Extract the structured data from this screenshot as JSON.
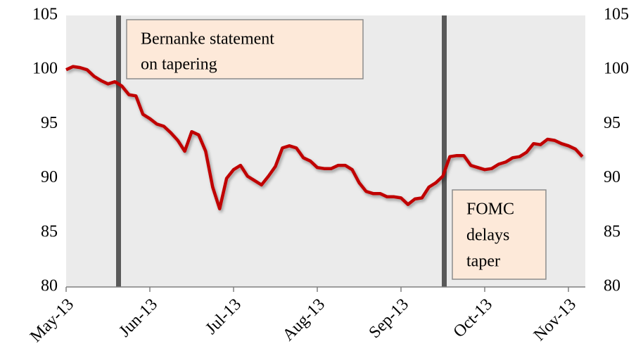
{
  "chart_data": {
    "type": "line",
    "categories": [
      "May-13",
      null,
      null,
      null,
      null,
      null,
      null,
      null,
      null,
      null,
      null,
      null,
      "Jun-13",
      null,
      null,
      null,
      null,
      null,
      null,
      null,
      null,
      null,
      null,
      null,
      "Jul-13",
      null,
      null,
      null,
      null,
      null,
      null,
      null,
      null,
      null,
      null,
      null,
      "Aug-13",
      null,
      null,
      null,
      null,
      null,
      null,
      null,
      null,
      null,
      null,
      null,
      "Sep-13",
      null,
      null,
      null,
      null,
      null,
      null,
      null,
      null,
      null,
      null,
      null,
      "Oct-13",
      null,
      null,
      null,
      null,
      null,
      null,
      null,
      null,
      null,
      null,
      null,
      "Nov-13",
      null,
      null
    ],
    "series": [
      {
        "color": "#c00000",
        "values": [
          100.0,
          100.3,
          100.2,
          100.0,
          99.4,
          99.0,
          98.7,
          98.9,
          98.5,
          97.7,
          97.6,
          95.9,
          95.5,
          95.0,
          94.8,
          94.2,
          93.5,
          92.5,
          94.3,
          94.0,
          92.5,
          89.2,
          87.2,
          90.0,
          90.8,
          91.2,
          90.2,
          89.8,
          89.4,
          90.2,
          91.1,
          92.8,
          93.0,
          92.8,
          91.9,
          91.6,
          91.0,
          90.9,
          90.9,
          91.2,
          91.2,
          90.8,
          89.6,
          88.8,
          88.6,
          88.6,
          88.3,
          88.3,
          88.2,
          87.6,
          88.1,
          88.2,
          89.2,
          89.6,
          90.2,
          92.0,
          92.1,
          92.1,
          91.2,
          91.0,
          90.8,
          90.9,
          91.3,
          91.5,
          91.9,
          92.0,
          92.4,
          93.2,
          93.1,
          93.6,
          93.5,
          93.2,
          93.0,
          92.7,
          92.0
        ]
      }
    ],
    "ylim": [
      80,
      105
    ],
    "yticks": [
      80,
      85,
      90,
      95,
      100,
      105
    ],
    "y2lim": [
      80,
      105
    ],
    "y2ticks": [
      80,
      85,
      90,
      95,
      100,
      105
    ],
    "annotations": [
      [
        "Bernanke statement",
        "on tapering"
      ],
      [
        "FOMC",
        "delays",
        "taper"
      ]
    ]
  }
}
